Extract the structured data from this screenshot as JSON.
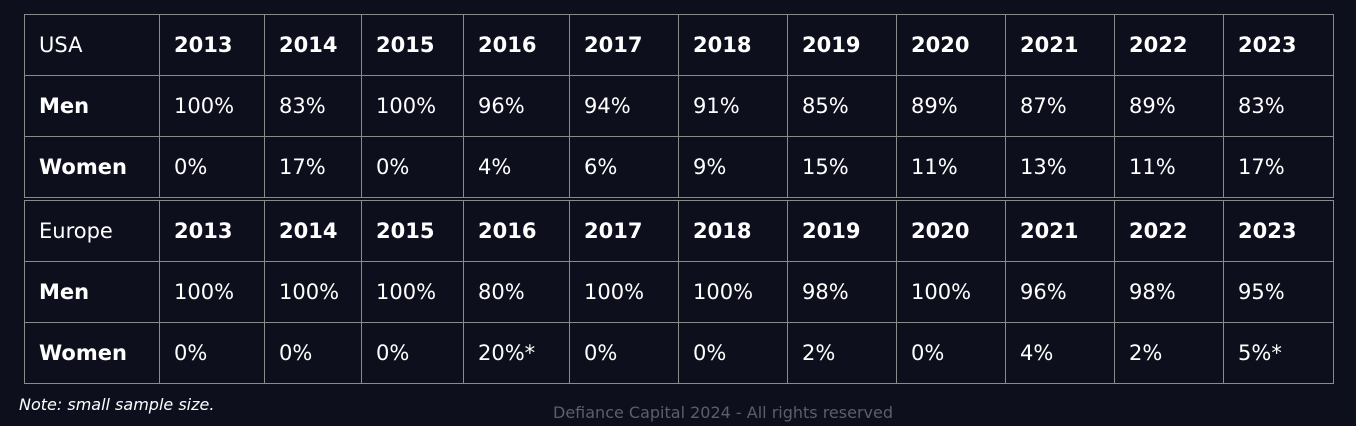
{
  "chart_data": {
    "type": "table",
    "sections": [
      {
        "region": "USA",
        "years": [
          "2013",
          "2014",
          "2015",
          "2016",
          "2017",
          "2018",
          "2019",
          "2020",
          "2021",
          "2022",
          "2023"
        ],
        "rows": [
          {
            "label": "Men",
            "values": [
              "100%",
              "83%",
              "100%",
              "96%",
              "94%",
              "91%",
              "85%",
              "89%",
              "87%",
              "89%",
              "83%"
            ]
          },
          {
            "label": "Women",
            "values": [
              "0%",
              "17%",
              "0%",
              "4%",
              "6%",
              "9%",
              "15%",
              "11%",
              "13%",
              "11%",
              "17%"
            ]
          }
        ]
      },
      {
        "region": "Europe",
        "years": [
          "2013",
          "2014",
          "2015",
          "2016",
          "2017",
          "2018",
          "2019",
          "2020",
          "2021",
          "2022",
          "2023"
        ],
        "rows": [
          {
            "label": "Men",
            "values": [
              "100%",
              "100%",
              "100%",
              "80%",
              "100%",
              "100%",
              "98%",
              "100%",
              "96%",
              "98%",
              "95%"
            ]
          },
          {
            "label": "Women",
            "values": [
              "0%",
              "0%",
              "0%",
              "20%*",
              "0%",
              "0%",
              "2%",
              "0%",
              "4%",
              "2%",
              "5%*"
            ]
          }
        ]
      }
    ],
    "note": "Note: small sample size.",
    "footer": "Defiance Capital 2024 - All rights reserved"
  },
  "colors": {
    "background": "#0d0f1c",
    "text": "#ffffff",
    "grid": "#8a8a8a",
    "footer": "#5c5f6b"
  }
}
